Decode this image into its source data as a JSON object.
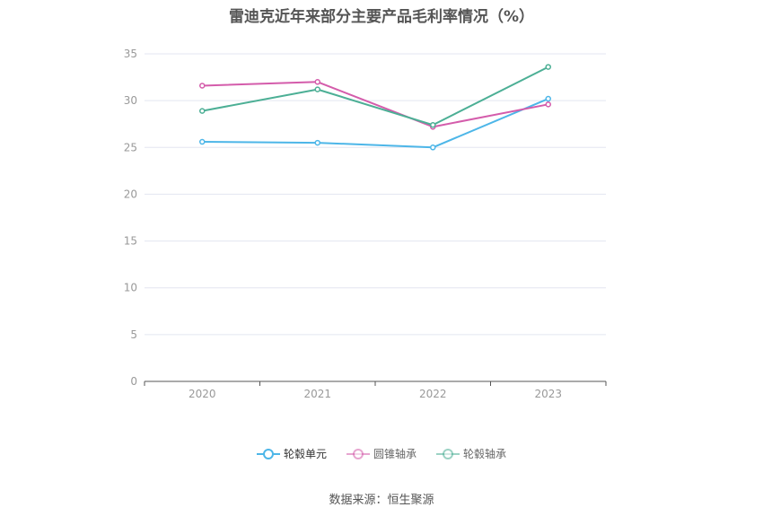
{
  "title": "雷迪克近年来部分主要产品毛利率情况（%）",
  "source": "数据来源：恒生聚源",
  "colors": {
    "grid": "#e3e6f0",
    "axis": "#555555",
    "tick_label": "#999999"
  },
  "chart_data": {
    "type": "line",
    "title": "雷迪克近年来部分主要产品毛利率情况（%）",
    "xlabel": "",
    "ylabel": "",
    "x": [
      "2020",
      "2021",
      "2022",
      "2023"
    ],
    "ylim": [
      0,
      35
    ],
    "yticks": [
      0,
      5,
      10,
      15,
      20,
      25,
      30,
      35
    ],
    "grid": true,
    "legend_position": "bottom",
    "series": [
      {
        "name": "轮毂单元",
        "color": "#4db6e8",
        "values": [
          25.6,
          25.5,
          25.0,
          30.2
        ]
      },
      {
        "name": "圆锥轴承",
        "color": "#d45cab",
        "values": [
          31.6,
          32.0,
          27.2,
          29.6
        ]
      },
      {
        "name": "轮毂轴承",
        "color": "#4caf95",
        "values": [
          28.9,
          31.2,
          27.4,
          33.6
        ]
      }
    ]
  }
}
